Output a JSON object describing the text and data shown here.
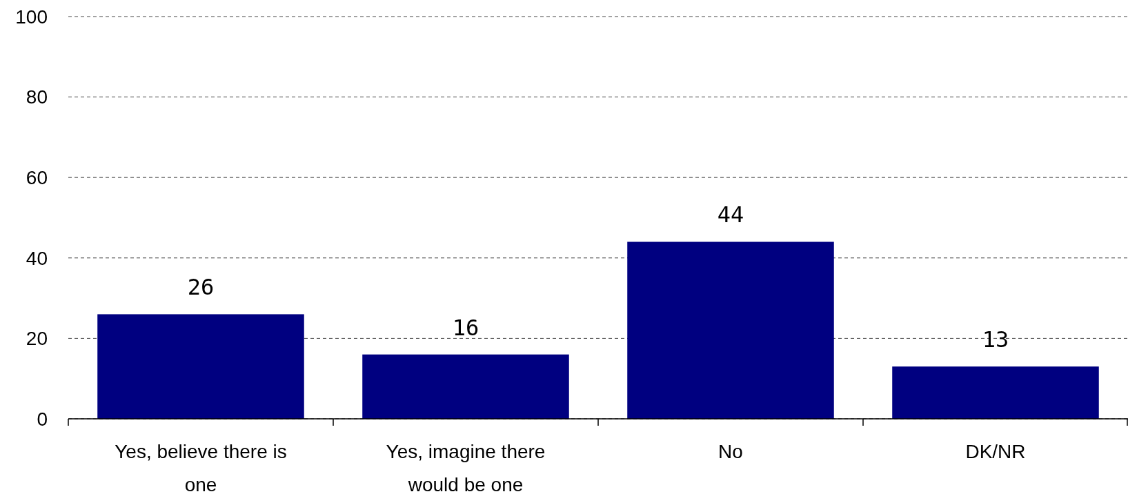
{
  "chart_data": {
    "type": "bar",
    "categories": [
      "Yes, believe there is one",
      "Yes, imagine there would be one",
      "No",
      "DK/NR"
    ],
    "values": [
      26,
      16,
      44,
      13
    ],
    "color": "#000080",
    "ylim": [
      0,
      100
    ],
    "yticks": [
      0,
      20,
      40,
      60,
      80,
      100
    ],
    "grid": "y",
    "data_labels": true
  }
}
